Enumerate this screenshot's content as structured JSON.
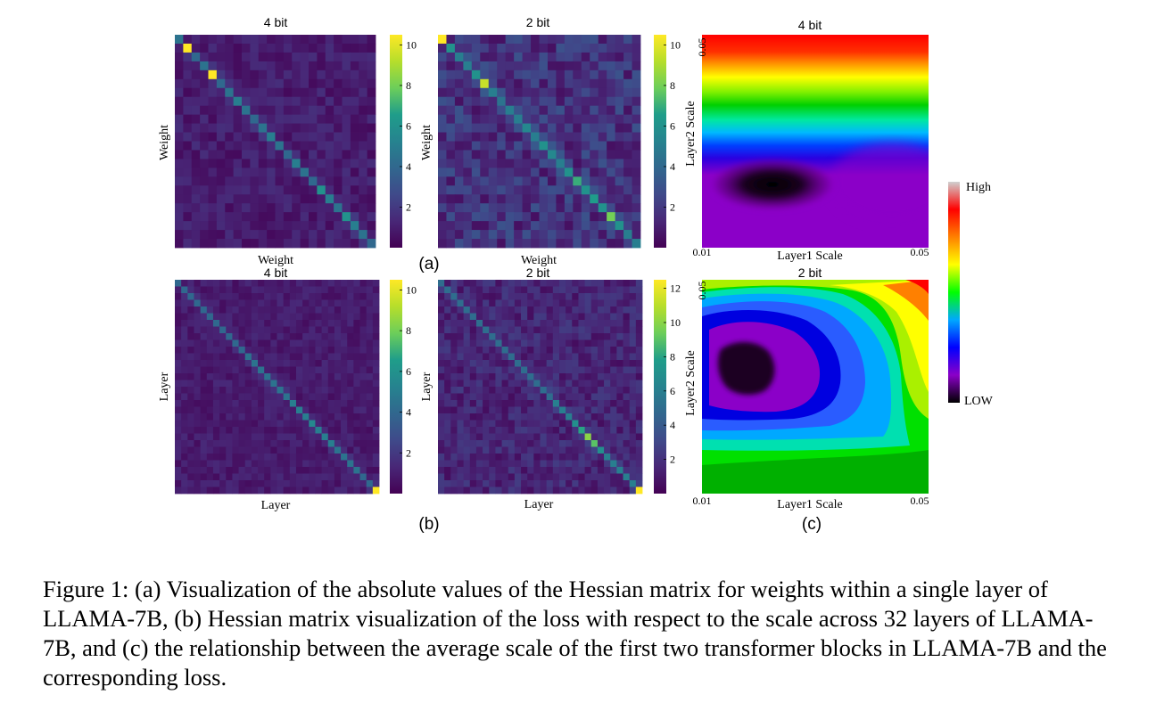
{
  "colors": {
    "viridis": [
      "#440154",
      "#482777",
      "#3f4a8a",
      "#31678e",
      "#26838f",
      "#1f9d8a",
      "#6cce5a",
      "#b6de2b",
      "#fee825"
    ],
    "rainbow": [
      "#000000",
      "#8b00c8",
      "#0000ff",
      "#00a8ff",
      "#00ff00",
      "#ffff00",
      "#ff8000",
      "#ff0000",
      "#d0d0d0"
    ]
  },
  "panels": {
    "a_label": "(a)",
    "b_label": "(b)",
    "c_label": "(c)"
  },
  "scale_legend": {
    "high": "High",
    "low": "LOW"
  },
  "chart_data": [
    {
      "type": "heatmap",
      "panel": "a-left",
      "title": "4 bit",
      "xlabel": "Weight",
      "ylabel": "Weight",
      "colorbar_ticks": [
        "2",
        "4",
        "6",
        "8",
        "10"
      ],
      "zlim": [
        0,
        10.5
      ],
      "grid_size": 24,
      "diagonal_values": [
        4.5,
        10.5,
        4,
        4.5,
        10.5,
        4,
        4.5,
        5,
        4.5,
        4,
        4.5,
        5,
        4.5,
        4,
        5,
        4.5,
        4,
        6,
        5,
        4.5,
        6,
        5,
        4.5,
        4
      ],
      "offdiag_range": [
        0.3,
        1.6
      ]
    },
    {
      "type": "heatmap",
      "panel": "a-middle",
      "title": "2 bit",
      "xlabel": "Weight",
      "ylabel": "Weight",
      "colorbar_ticks": [
        "2",
        "4",
        "6",
        "8",
        "10"
      ],
      "zlim": [
        0,
        10.5
      ],
      "grid_size": 24,
      "diagonal_values": [
        10.5,
        6,
        5,
        5,
        6,
        9.5,
        5,
        4.5,
        5,
        5,
        5.5,
        5,
        6,
        5.5,
        5,
        6,
        7,
        6,
        6.5,
        6,
        8,
        6,
        5,
        5
      ],
      "offdiag_range": [
        0.5,
        3
      ]
    },
    {
      "type": "heatmap",
      "panel": "b-left",
      "title": "4 bit",
      "xlabel": "Layer",
      "ylabel": "Layer",
      "colorbar_ticks": [
        "2",
        "4",
        "6",
        "8",
        "10"
      ],
      "zlim": [
        0,
        10.5
      ],
      "grid_size": 32,
      "diagonal_values": [
        4,
        4,
        4,
        4,
        4,
        4,
        4,
        4,
        4,
        4,
        4,
        4.5,
        4.5,
        4.5,
        4.5,
        4.5,
        4.5,
        4.5,
        5,
        5,
        5,
        5.5,
        5,
        5,
        5,
        4.5,
        4.5,
        4.5,
        4.5,
        4,
        4,
        10.5
      ],
      "offdiag_range": [
        0.4,
        1.4
      ]
    },
    {
      "type": "heatmap",
      "panel": "b-middle",
      "title": "2 bit",
      "xlabel": "Layer",
      "ylabel": "Layer",
      "colorbar_ticks": [
        "2",
        "4",
        "6",
        "8",
        "10",
        "12"
      ],
      "zlim": [
        0,
        12.5
      ],
      "grid_size": 32,
      "diagonal_values": [
        5,
        5,
        5,
        5,
        5,
        5,
        5,
        5,
        5,
        5,
        5,
        5,
        5,
        5,
        5,
        5,
        5,
        5,
        6,
        6,
        6,
        7,
        8,
        10,
        9,
        7,
        6,
        6,
        6,
        6,
        6,
        12.5
      ],
      "offdiag_range": [
        0.5,
        2.5
      ]
    },
    {
      "type": "heatmap",
      "panel": "c-top",
      "title": "4 bit",
      "xlabel": "Layer1 Scale",
      "ylabel": "Layer2 Scale",
      "x_ticks": [
        "0.01",
        "0.05"
      ],
      "y_ticks": [
        "0.05"
      ],
      "xlim": [
        0.01,
        0.05
      ],
      "ylim": [
        0.01,
        0.05
      ],
      "surface": "banded loss surface, minimum near Layer1 Scale 0.02, Layer2 Scale 0.02"
    },
    {
      "type": "heatmap",
      "panel": "c-bottom",
      "title": "2 bit",
      "xlabel": "Layer1 Scale",
      "ylabel": "Layer2 Scale",
      "x_ticks": [
        "0.01",
        "0.05"
      ],
      "y_ticks": [
        "0.05"
      ],
      "xlim": [
        0.01,
        0.05
      ],
      "ylim": [
        0.01,
        0.05
      ],
      "surface": "contoured loss surface, minimum near Layer1 Scale 0.02, Layer2 Scale 0.035"
    }
  ],
  "caption": "Figure 1: (a) Visualization of the absolute values of the Hessian matrix for weights within a single layer of LLAMA-7B, (b) Hessian matrix visualization of the loss with respect to the scale across 32 layers of LLAMA-7B, and (c) the relationship between the average scale of the first two transformer blocks in LLAMA-7B and the corresponding loss."
}
